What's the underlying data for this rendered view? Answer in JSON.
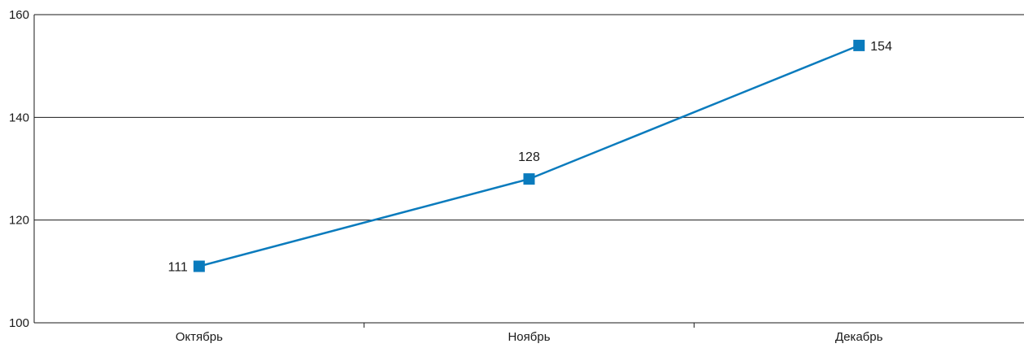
{
  "colors": {
    "series": "#0a7bbd",
    "grid": "#1a1a1a",
    "text": "#1a1a1a"
  },
  "chart_data": {
    "type": "line",
    "categories": [
      "Октябрь",
      "Ноябрь",
      "Декабрь"
    ],
    "series": [
      {
        "values": [
          111,
          128,
          154
        ],
        "marker": "square",
        "data_labels": [
          "111",
          "128",
          "154"
        ]
      }
    ],
    "y_ticks": [
      "100",
      "120",
      "140",
      "160"
    ],
    "ylim": [
      100,
      160
    ],
    "grid": true,
    "legend": "none"
  }
}
